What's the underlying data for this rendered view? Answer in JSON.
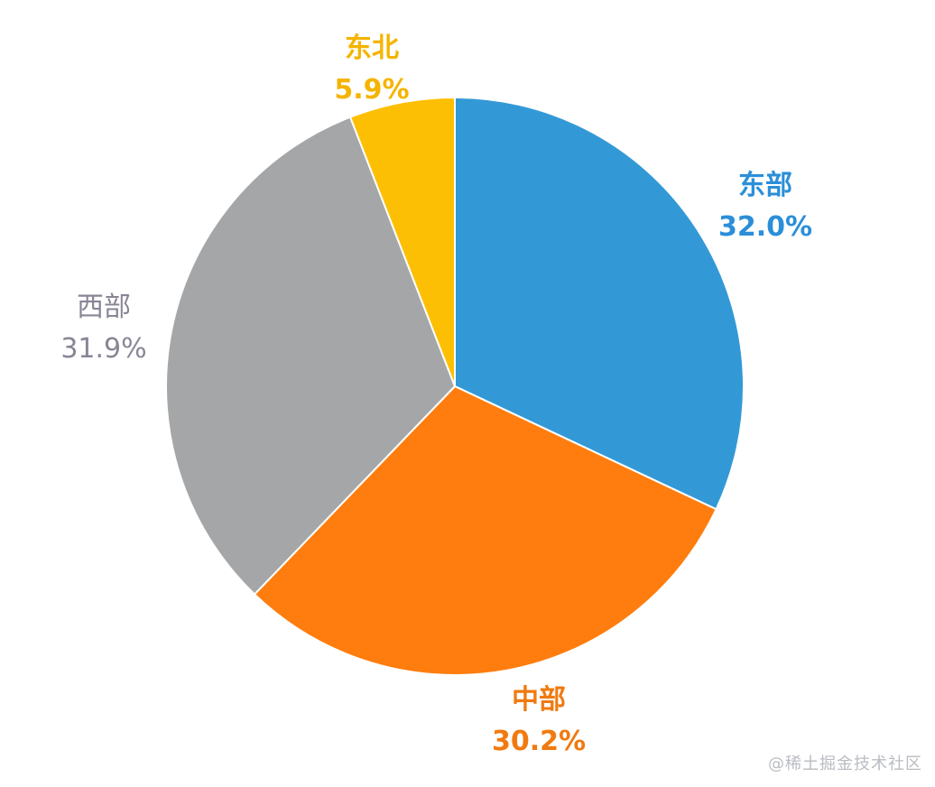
{
  "chart_data": {
    "type": "pie",
    "title": "",
    "categories": [
      "东部",
      "中部",
      "西部",
      "东北"
    ],
    "values": [
      32.0,
      30.2,
      31.9,
      5.9
    ],
    "value_labels": [
      "32.0%",
      "30.2%",
      "31.9%",
      "5.9%"
    ],
    "colors": [
      "#3399d6",
      "#ff7d0e",
      "#a5a6a8",
      "#fdbf03"
    ],
    "label_colors": [
      "#2b8fd8",
      "#f07a10",
      "#8a8595",
      "#f5b400"
    ],
    "start_angle": "12 o'clock",
    "direction": "clockwise",
    "legend": "none"
  },
  "watermark": "@稀土掘金技术社区"
}
